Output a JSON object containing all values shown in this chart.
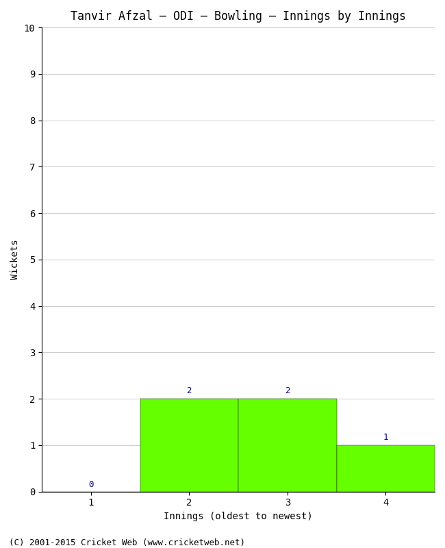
{
  "title": "Tanvir Afzal – ODI – Bowling – Innings by Innings",
  "xlabel": "Innings (oldest to newest)",
  "ylabel": "Wickets",
  "categories": [
    1,
    2,
    3,
    4
  ],
  "values": [
    0,
    2,
    2,
    1
  ],
  "bar_color": "#66ff00",
  "bar_edge_color": "#000000",
  "label_color": "#000080",
  "ylim": [
    0,
    10
  ],
  "yticks": [
    0,
    1,
    2,
    3,
    4,
    5,
    6,
    7,
    8,
    9,
    10
  ],
  "xticks": [
    1,
    2,
    3,
    4
  ],
  "xlim": [
    0.5,
    4.5
  ],
  "background_color": "#ffffff",
  "plot_bg_color": "#f0f0f0",
  "footer": "(C) 2001-2015 Cricket Web (www.cricketweb.net)",
  "title_fontsize": 12,
  "axis_label_fontsize": 10,
  "tick_fontsize": 10,
  "footer_fontsize": 9,
  "bar_label_fontsize": 9,
  "bar_width": 1.0
}
